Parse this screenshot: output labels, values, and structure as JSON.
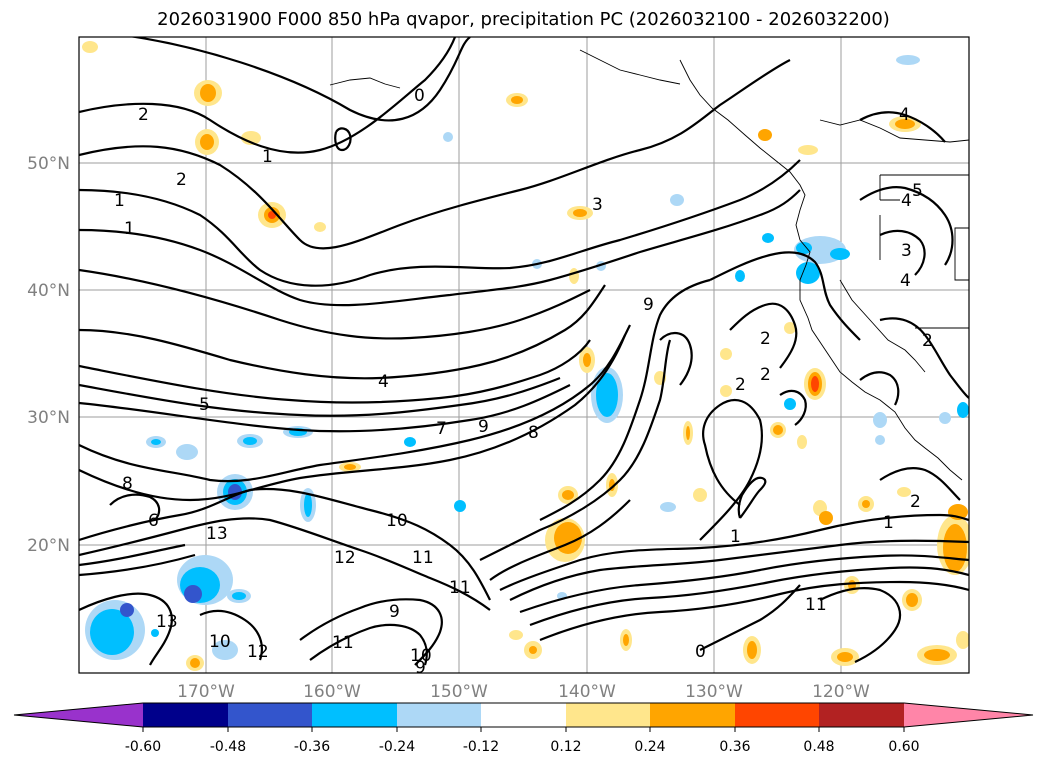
{
  "title": "2026031900 F000 850 hPa qvapor, precipitation PC (2026032100 - 2026032200)",
  "map": {
    "lat_labels": [
      "50°N",
      "40°N",
      "30°N",
      "20°N"
    ],
    "lon_labels": [
      "170°W",
      "160°W",
      "150°W",
      "140°W",
      "130°W",
      "120°W"
    ],
    "contour_labels": [
      "2",
      "1",
      "2",
      "1",
      "1",
      "0",
      "3",
      "4",
      "5",
      "4",
      "3",
      "4",
      "9",
      "2",
      "2",
      "2",
      "4",
      "5",
      "7",
      "9",
      "8",
      "8",
      "6",
      "13",
      "10",
      "12",
      "11",
      "11",
      "9",
      "13",
      "10",
      "10",
      "9",
      "12",
      "11",
      "11",
      "0",
      "2",
      "1",
      "1",
      "2"
    ]
  },
  "colorbar": {
    "colors": [
      "#9932cc",
      "#00008b",
      "#3355cc",
      "#00bfff",
      "#add8f6",
      "#ffffff",
      "#ffe68c",
      "#ffa500",
      "#ff4500",
      "#b22222",
      "#ff85a8"
    ],
    "tick_labels": [
      "-0.60",
      "-0.48",
      "-0.36",
      "-0.24",
      "-0.12",
      "0.12",
      "0.24",
      "0.36",
      "0.48",
      "0.60"
    ]
  }
}
